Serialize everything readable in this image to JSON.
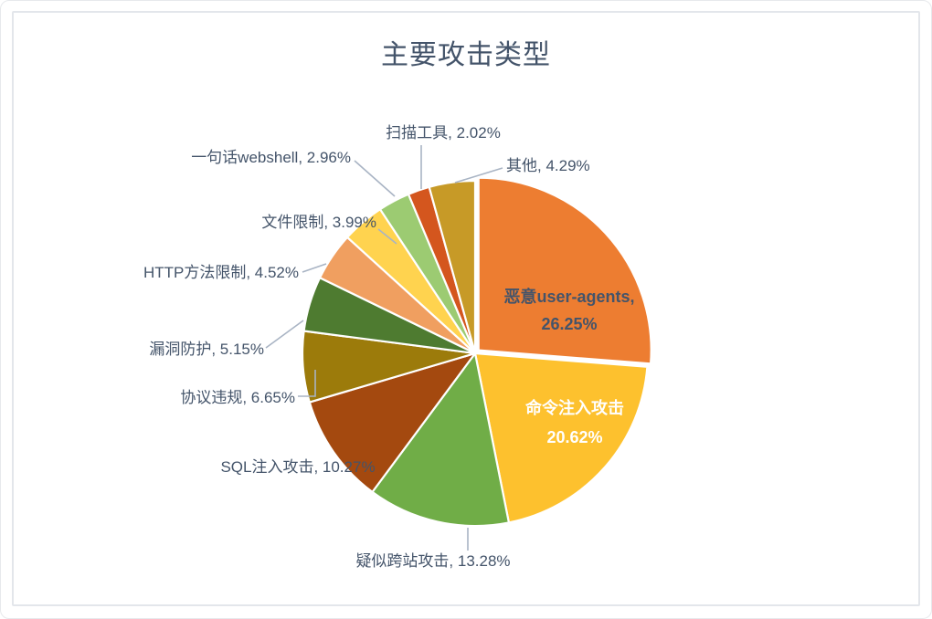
{
  "chart_data": {
    "type": "pie",
    "title": "主要攻击类型",
    "legend": "none",
    "unit": "%",
    "start_angle_deg": 0,
    "direction": "clockwise",
    "categories": [
      "恶意user-agents",
      "命令注入攻击",
      "疑似跨站攻击",
      "SQL注入攻击",
      "协议违规",
      "漏洞防护",
      "HTTP方法限制",
      "文件限制",
      "一句话webshell",
      "扫描工具",
      "其他"
    ],
    "values": [
      26.25,
      20.62,
      13.28,
      10.27,
      6.65,
      5.15,
      4.52,
      3.99,
      2.96,
      2.02,
      4.29
    ],
    "colors": [
      "#ED7D31",
      "#FDC12E",
      "#70AD47",
      "#A4490F",
      "#9C7B0B",
      "#4E7B30",
      "#F09F60",
      "#FFD34F",
      "#9CCB72",
      "#D4561E",
      "#C79A27"
    ],
    "label_color": "#44546A",
    "leader_line_color": "#A9B4C4",
    "slice_border_color": "#FFFFFF",
    "display_labels": [
      {
        "placement": "inside",
        "color": "#44546A",
        "lines": [
          "恶意user-agents,",
          "26.25%"
        ]
      },
      {
        "placement": "inside",
        "color": "#FFFFFF",
        "lines": [
          "命令注入攻击",
          "20.62%"
        ]
      },
      {
        "placement": "outside",
        "lines": [
          "疑似跨站攻击, 13.28%"
        ]
      },
      {
        "placement": "outside",
        "lines": [
          "SQL注入攻击, 10.27%"
        ]
      },
      {
        "placement": "outside",
        "lines": [
          "协议违规, 6.65%"
        ]
      },
      {
        "placement": "outside",
        "lines": [
          "漏洞防护, 5.15%"
        ]
      },
      {
        "placement": "outside",
        "lines": [
          "HTTP方法限制, 4.52%"
        ]
      },
      {
        "placement": "outside",
        "lines": [
          "文件限制, 3.99%"
        ]
      },
      {
        "placement": "outside",
        "lines": [
          "一句话webshell, 2.96%"
        ]
      },
      {
        "placement": "outside",
        "lines": [
          "扫描工具, 2.02%"
        ]
      },
      {
        "placement": "outside",
        "lines": [
          "其他, 4.29%"
        ]
      }
    ]
  }
}
